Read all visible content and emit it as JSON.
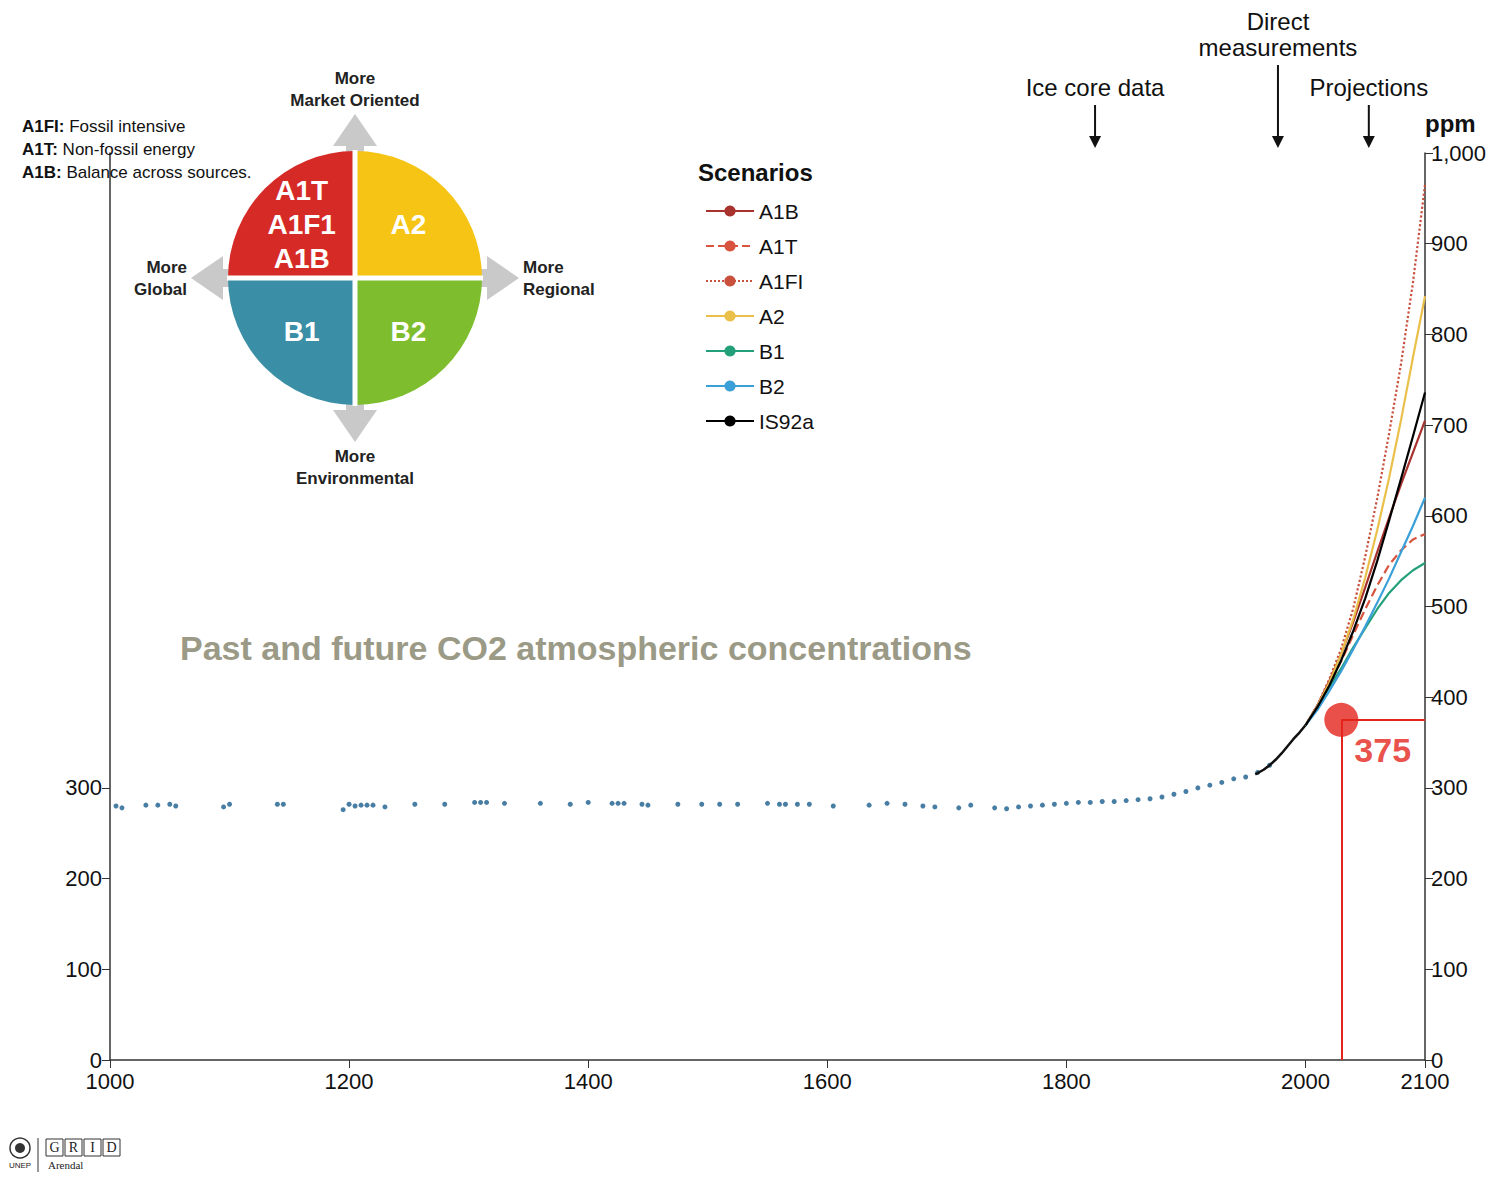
{
  "chart_data": {
    "type": "line",
    "title": "Past and future CO2 atmospheric concentrations",
    "y2_label": "ppm",
    "xlim": [
      1000,
      2100
    ],
    "xticks": [
      1000,
      1200,
      1400,
      1600,
      1800,
      2000,
      2100
    ],
    "ylim": [
      0,
      1000
    ],
    "yticks": [
      0,
      100,
      200,
      300
    ],
    "y2lim": [
      0,
      1000
    ],
    "y2ticks": [
      0,
      100,
      200,
      300,
      400,
      500,
      600,
      700,
      800,
      900,
      {
        "value": 1000,
        "label": "1,000"
      }
    ],
    "grid": false,
    "legend": "top",
    "legend_title": "Scenarios",
    "annotations": [
      {
        "text": "Ice core data",
        "x": 1824
      },
      {
        "text": "Direct\nmeasurements",
        "x": 1977
      },
      {
        "text": "Projections",
        "x": 2053
      }
    ],
    "ice_core": {
      "type": "scatter",
      "color": "#1a5e8c",
      "x": [
        1005,
        1010,
        1030,
        1040,
        1050,
        1055,
        1095,
        1100,
        1140,
        1145,
        1195,
        1200,
        1205,
        1210,
        1215,
        1220,
        1230,
        1255,
        1280,
        1305,
        1310,
        1315,
        1330,
        1360,
        1385,
        1400,
        1420,
        1425,
        1430,
        1445,
        1450,
        1475,
        1495,
        1510,
        1525,
        1550,
        1560,
        1565,
        1575,
        1585,
        1605,
        1635,
        1650,
        1665,
        1680,
        1690,
        1710,
        1720,
        1740,
        1750,
        1760,
        1770,
        1780,
        1790,
        1800,
        1810,
        1820,
        1830,
        1840,
        1850,
        1860,
        1870,
        1880,
        1890,
        1900,
        1910,
        1920,
        1930,
        1940,
        1950,
        1960,
        1970
      ],
      "values": [
        280,
        278,
        281,
        281,
        282,
        280,
        279,
        282,
        282,
        282,
        276,
        282,
        280,
        281,
        281,
        281,
        279,
        282,
        282,
        284,
        284,
        284,
        283,
        283,
        282,
        284,
        283,
        283,
        283,
        282,
        281,
        282,
        282,
        282,
        282,
        283,
        282,
        282,
        282,
        282,
        280,
        281,
        283,
        282,
        280,
        279,
        278,
        281,
        278,
        277,
        279,
        280,
        281,
        282,
        283,
        284,
        284,
        285,
        285,
        286,
        287,
        288,
        290,
        293,
        296,
        300,
        303,
        306,
        310,
        312,
        317,
        325
      ]
    },
    "direct": {
      "type": "line",
      "color": "#111111",
      "x": [
        1958,
        1965,
        1970,
        1975,
        1980,
        1985,
        1990,
        1995,
        2000
      ],
      "values": [
        315,
        320,
        325,
        331,
        338,
        346,
        354,
        361,
        369
      ]
    },
    "x": [
      2000,
      2010,
      2020,
      2030,
      2040,
      2050,
      2060,
      2070,
      2080,
      2090,
      2100
    ],
    "series": [
      {
        "name": "A1B",
        "color": "#a8322e",
        "line_style": "solid",
        "axis": "y2",
        "values": [
          369,
          391,
          418,
          448,
          483,
          521,
          560,
          598,
          635,
          670,
          705
        ]
      },
      {
        "name": "A1T",
        "color": "#d9543f",
        "line_style": "dashed",
        "axis": "y2",
        "values": [
          369,
          390,
          414,
          440,
          469,
          497,
          523,
          546,
          562,
          574,
          580
        ]
      },
      {
        "name": "A1FI",
        "color": "#c9503c",
        "line_style": "dotted",
        "axis": "y2",
        "values": [
          369,
          391,
          420,
          454,
          498,
          555,
          619,
          691,
          768,
          858,
          965
        ]
      },
      {
        "name": "A2",
        "color": "#eac04b",
        "line_style": "solid",
        "axis": "y2",
        "values": [
          369,
          390,
          416,
          448,
          486,
          532,
          584,
          642,
          706,
          775,
          842
        ]
      },
      {
        "name": "B1",
        "color": "#23a07a",
        "line_style": "solid",
        "axis": "y2",
        "values": [
          369,
          389,
          411,
          432,
          455,
          476,
          497,
          515,
          529,
          540,
          548
        ]
      },
      {
        "name": "B2",
        "color": "#3b9fd8",
        "line_style": "solid",
        "axis": "y2",
        "values": [
          369,
          386,
          407,
          429,
          453,
          478,
          504,
          531,
          560,
          589,
          620
        ]
      },
      {
        "name": "IS92a",
        "color": "#000000",
        "line_style": "solid",
        "axis": "y2",
        "values": [
          369,
          389,
          413,
          441,
          473,
          509,
          550,
          595,
          641,
          688,
          736
        ]
      }
    ],
    "highlight": {
      "x": 2030,
      "y": 375,
      "color": "#e3241b",
      "data_labels": true
    }
  },
  "diagram": {
    "definitions": [
      {
        "term": "A1FI:",
        "text": "Fossil intensive"
      },
      {
        "term": "A1T:",
        "text": "Non-fossil energy"
      },
      {
        "term": "A1B:",
        "text": "Balance across sources."
      }
    ],
    "quadrants": [
      {
        "position": "top-left",
        "labels": [
          "A1T",
          "A1F1",
          "A1B"
        ],
        "color": "#d62a27"
      },
      {
        "position": "top-right",
        "labels": [
          "A2"
        ],
        "color": "#f5c414"
      },
      {
        "position": "bottom-left",
        "labels": [
          "B1"
        ],
        "color": "#3a8ea5"
      },
      {
        "position": "bottom-right",
        "labels": [
          "B2"
        ],
        "color": "#7dbd2e"
      }
    ],
    "directions": {
      "up": "More\nMarket Oriented",
      "left": "More\nGlobal",
      "right": "More\nRegional",
      "down": "More\nEnvironmental"
    }
  },
  "credit": {
    "logo": "UNEP",
    "name": "GRID",
    "place": "Arendal"
  }
}
